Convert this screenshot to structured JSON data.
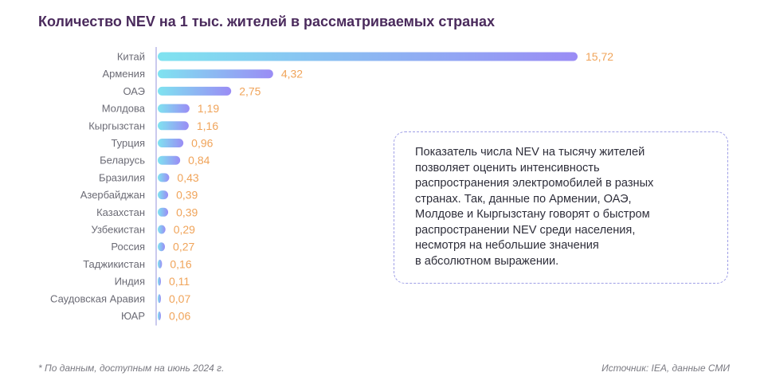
{
  "header": {
    "title": "Количество NEV на 1 тыс. жителей в рассматриваемых странах"
  },
  "colors": {
    "bar_gradient_start": "#7fe3f0",
    "bar_gradient_end": "#9a8cf5",
    "axis": "#b8b8e8",
    "value_label": "#f0a45a",
    "category_label": "#6b6b75",
    "title": "#4a2a5c",
    "note_border": "#9e9ee6"
  },
  "chart_data": {
    "type": "bar",
    "orientation": "horizontal",
    "title": "Количество NEV на 1 тыс. жителей в рассматриваемых странах",
    "categories": [
      "Китай",
      "Армения",
      "ОАЭ",
      "Молдова",
      "Кыргызстан",
      "Турция",
      "Беларусь",
      "Бразилия",
      "Азербайджан",
      "Казахстан",
      "Узбекистан",
      "Россия",
      "Таджикистан",
      "Индия",
      "Саудовская Аравия",
      "ЮАР"
    ],
    "values": [
      15.72,
      4.32,
      2.75,
      1.19,
      1.16,
      0.96,
      0.84,
      0.43,
      0.39,
      0.39,
      0.29,
      0.27,
      0.16,
      0.11,
      0.07,
      0.06
    ],
    "value_labels": [
      "15,72",
      "4,32",
      "2,75",
      "1,19",
      "1,16",
      "0,96",
      "0,84",
      "0,43",
      "0,39",
      "0,39",
      "0,29",
      "0,27",
      "0,16",
      "0,11",
      "0,07",
      "0,06"
    ],
    "xlim": [
      0,
      15.72
    ],
    "grid": false,
    "legend": "none"
  },
  "note": {
    "text": "Показатель числа NEV на тысячу жителей\nпозволяет оценить интенсивность\nраспространения электромобилей в разных\nстранах. Так, данные по Армении, ОАЭ,\nМолдове и Кыргызстану говорят о быстром\nраспространении NEV среди населения,\nнесмотря на небольшие значения\nв абсолютном выражении."
  },
  "footer": {
    "footnote": "* По данным, доступным на июнь 2024 г.",
    "source": "Источник: IEA, данные СМИ"
  }
}
